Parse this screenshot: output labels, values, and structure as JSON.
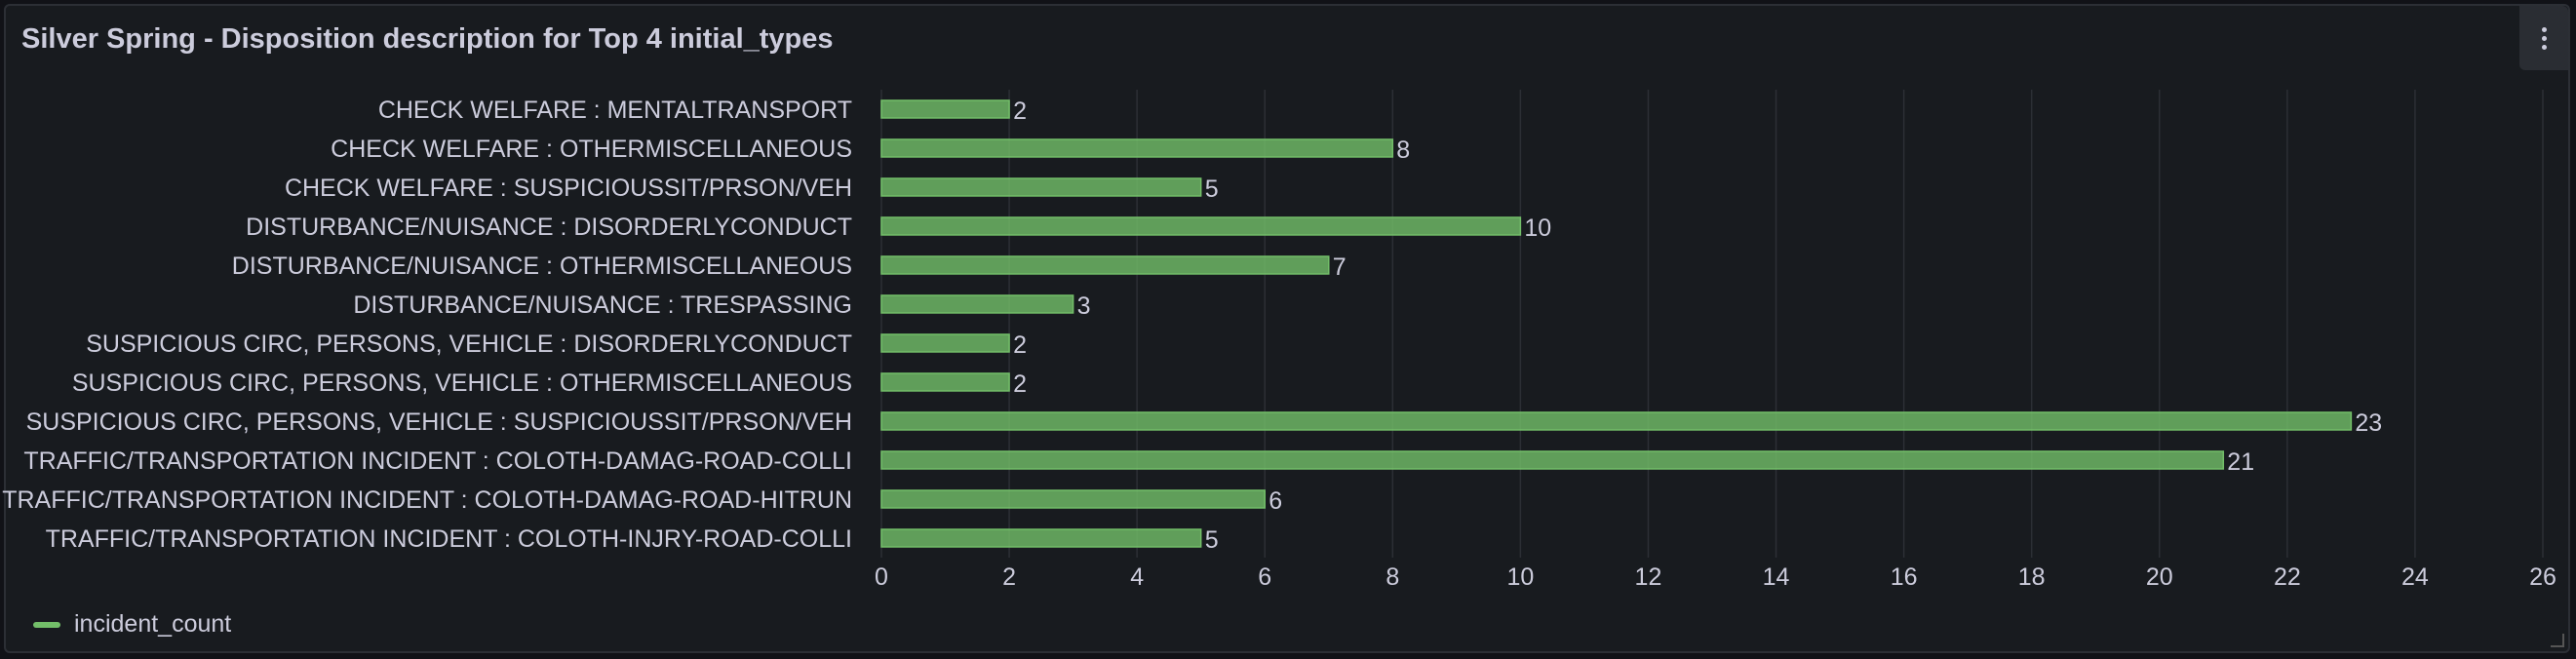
{
  "panel": {
    "title": "Silver Spring - Disposition description for Top 4 initial_types",
    "menu_icon": "kebab-menu-icon"
  },
  "colors": {
    "bar_fill": "#73bf69",
    "text": "#ccccdc",
    "grid": "#2c2f35",
    "background": "#181b1f"
  },
  "legend": {
    "label": "incident_count",
    "placement": "bottom-left"
  },
  "chart_data": {
    "type": "bar",
    "orientation": "horizontal",
    "categories": [
      "CHECK WELFARE : MENTALTRANSPORT",
      "CHECK WELFARE : OTHERMISCELLANEOUS",
      "CHECK WELFARE : SUSPICIOUSSIT/PRSON/VEH",
      "DISTURBANCE/NUISANCE : DISORDERLYCONDUCT",
      "DISTURBANCE/NUISANCE : OTHERMISCELLANEOUS",
      "DISTURBANCE/NUISANCE : TRESPASSING",
      "SUSPICIOUS CIRC, PERSONS, VEHICLE : DISORDERLYCONDUCT",
      "SUSPICIOUS CIRC, PERSONS, VEHICLE : OTHERMISCELLANEOUS",
      "SUSPICIOUS CIRC, PERSONS, VEHICLE : SUSPICIOUSSIT/PRSON/VEH",
      "TRAFFIC/TRANSPORTATION INCIDENT : COLOTH-DAMAG-ROAD-COLLI",
      "TRAFFIC/TRANSPORTATION INCIDENT : COLOTH-DAMAG-ROAD-HITRUN",
      "TRAFFIC/TRANSPORTATION INCIDENT : COLOTH-INJRY-ROAD-COLLI"
    ],
    "series": [
      {
        "name": "incident_count",
        "values": [
          2,
          8,
          5,
          10,
          7,
          3,
          2,
          2,
          23,
          21,
          6,
          5
        ]
      }
    ],
    "xlim": [
      0,
      26
    ],
    "xticks": [
      0,
      2,
      4,
      6,
      8,
      10,
      12,
      14,
      16,
      18,
      20,
      22,
      24,
      26
    ],
    "grid": true,
    "data_labels": true
  }
}
